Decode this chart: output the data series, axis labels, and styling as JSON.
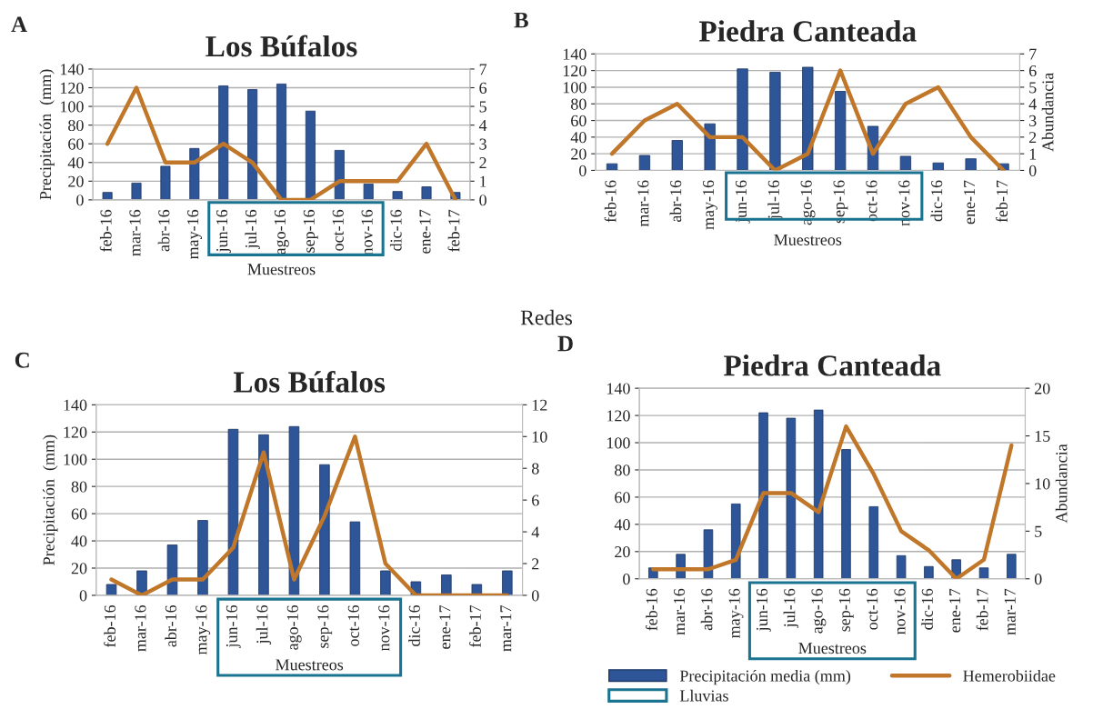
{
  "chart_data": [
    {
      "type": "bar",
      "title": "Los Búfalos",
      "annotations": [
        "A"
      ],
      "xlabel": "Muestreos",
      "ylabel": "Precipitación  (mm)",
      "categories": [
        "feb-16",
        "mar-16",
        "abr-16",
        "may-16",
        "jun-16",
        "jul-16",
        "ago-16",
        "sep-16",
        "oct-16",
        "nov-16",
        "dic-16",
        "ene-17",
        "feb-17"
      ],
      "series": [
        {
          "color": "#2e5597",
          "values": [
            8,
            18,
            36,
            55,
            122,
            118,
            124,
            95,
            53,
            17,
            9,
            14,
            8
          ]
        },
        {
          "type": "line",
          "axis": "y2",
          "color": "#c0772a",
          "values": [
            3,
            6,
            2,
            2,
            3,
            2,
            0,
            0,
            1,
            1,
            1,
            3,
            0
          ]
        }
      ],
      "ylim": [
        0,
        140
      ],
      "yticks": [
        0,
        20,
        40,
        60,
        80,
        100,
        120,
        140
      ],
      "y2lim": [
        0,
        7
      ],
      "y2ticks": [
        0,
        1,
        2,
        3,
        4,
        5,
        6,
        7
      ],
      "grid": "y",
      "legend": false
    },
    {
      "type": "bar",
      "title": "Piedra Canteada",
      "annotations": [
        "B"
      ],
      "xlabel": "Muestreos",
      "y2label": "Abundancia",
      "categories": [
        "feb-16",
        "mar-16",
        "abr-16",
        "may-16",
        "jun-16",
        "jul-16",
        "ago-16",
        "sep-16",
        "oct-16",
        "nov-16",
        "dic-16",
        "ene-17",
        "feb-17"
      ],
      "series": [
        {
          "color": "#2e5597",
          "values": [
            8,
            18,
            36,
            56,
            122,
            118,
            124,
            95,
            53,
            17,
            9,
            14,
            8
          ]
        },
        {
          "type": "line",
          "axis": "y2",
          "color": "#c0772a",
          "values": [
            1,
            3,
            4,
            2,
            2,
            0,
            1,
            6,
            1,
            4,
            5,
            2,
            0
          ]
        }
      ],
      "ylim": [
        0,
        140
      ],
      "yticks": [
        0,
        20,
        40,
        60,
        80,
        100,
        120,
        140
      ],
      "y2lim": [
        0,
        7
      ],
      "y2ticks": [
        0,
        1,
        2,
        3,
        4,
        5,
        6,
        7
      ],
      "grid": "y",
      "legend": false
    },
    {
      "type": "bar",
      "title": "Los Búfalos",
      "subtitle": "Redes",
      "annotations": [
        "C"
      ],
      "xlabel": "Muestreos",
      "ylabel": "Precipitación  (mm)",
      "categories": [
        "feb-16",
        "mar-16",
        "abr-16",
        "may-16",
        "jun-16",
        "jul-16",
        "ago-16",
        "sep-16",
        "oct-16",
        "nov-16",
        "dic-16",
        "ene-17",
        "feb-17",
        "mar-17"
      ],
      "series": [
        {
          "color": "#2e5597",
          "values": [
            8,
            18,
            37,
            55,
            122,
            118,
            124,
            96,
            54,
            18,
            10,
            15,
            8,
            18
          ]
        },
        {
          "type": "line",
          "axis": "y2",
          "color": "#c0772a",
          "values": [
            1,
            0,
            1,
            1,
            3,
            9,
            1,
            5,
            10,
            2,
            0,
            0,
            0,
            0
          ]
        }
      ],
      "ylim": [
        0,
        140
      ],
      "yticks": [
        0,
        20,
        40,
        60,
        80,
        100,
        120,
        140
      ],
      "y2lim": [
        0,
        12
      ],
      "y2ticks": [
        0,
        2,
        4,
        6,
        8,
        10,
        12
      ],
      "grid": "y",
      "legend": false
    },
    {
      "type": "bar",
      "title": "Piedra Canteada",
      "annotations": [
        "D",
        "Lluvias"
      ],
      "xlabel": "Muestreos",
      "y2label": "Abundancia",
      "categories": [
        "feb-16",
        "mar-16",
        "abr-16",
        "may-16",
        "jun-16",
        "jul-16",
        "ago-16",
        "sep-16",
        "oct-16",
        "nov-16",
        "dic-16",
        "ene-17",
        "feb-17",
        "mar-17"
      ],
      "series": [
        {
          "name": "Precipitación media (mm)",
          "color": "#2e5597",
          "values": [
            8,
            18,
            36,
            55,
            122,
            118,
            124,
            95,
            53,
            17,
            9,
            14,
            8,
            18
          ]
        },
        {
          "type": "line",
          "name": "Hemerobiidae",
          "axis": "y2",
          "color": "#c0772a",
          "values": [
            1,
            1,
            1,
            2,
            9,
            9,
            7,
            16,
            11,
            5,
            3,
            0,
            2,
            14
          ]
        }
      ],
      "ylim": [
        0,
        140
      ],
      "yticks": [
        0,
        20,
        40,
        60,
        80,
        100,
        120,
        140
      ],
      "y2lim": [
        0,
        20
      ],
      "y2ticks": [
        0,
        5,
        10,
        15,
        20
      ],
      "grid": "y",
      "legend": "bottom"
    }
  ]
}
